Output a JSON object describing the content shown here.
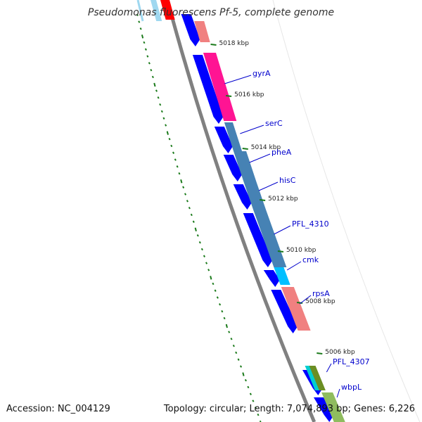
{
  "title": "Pseudomonas fluorescens Pf-5, complete genome",
  "footer": {
    "accession": "Accession: NC_004129",
    "summary": "Topology: circular; Length: 7,074,893 bp; Genes: 6,226"
  },
  "colors": {
    "cds": "#0000ff",
    "backbone": "#808080",
    "tick": "#1a7a1a",
    "label": "#0000cc"
  },
  "ticks": [
    {
      "label": "5018 kbp"
    },
    {
      "label": "5016 kbp"
    },
    {
      "label": "5014 kbp"
    },
    {
      "label": "5012 kbp"
    },
    {
      "label": "5010 kbp"
    },
    {
      "label": "5008 kbp"
    },
    {
      "label": "5006 kbp"
    }
  ],
  "genes": [
    {
      "label": "gyrA"
    },
    {
      "label": "serC"
    },
    {
      "label": "pheA"
    },
    {
      "label": "hisC"
    },
    {
      "label": "PFL_4310"
    },
    {
      "label": "cmk"
    },
    {
      "label": "rpsA"
    },
    {
      "label": "PFL_4307"
    },
    {
      "label": "wbpL"
    }
  ],
  "cog_colors": {
    "gyrA": "#ff1493",
    "serC": "#4682b4",
    "pheA": "#4682b4",
    "hisC": "#4682b4",
    "PFL_4310": "#4682b4",
    "cmk": "#00bfff",
    "rpsA": "#f08080",
    "PFL_4307": "#6b8e23",
    "wbpL": "#8fbc5f"
  }
}
